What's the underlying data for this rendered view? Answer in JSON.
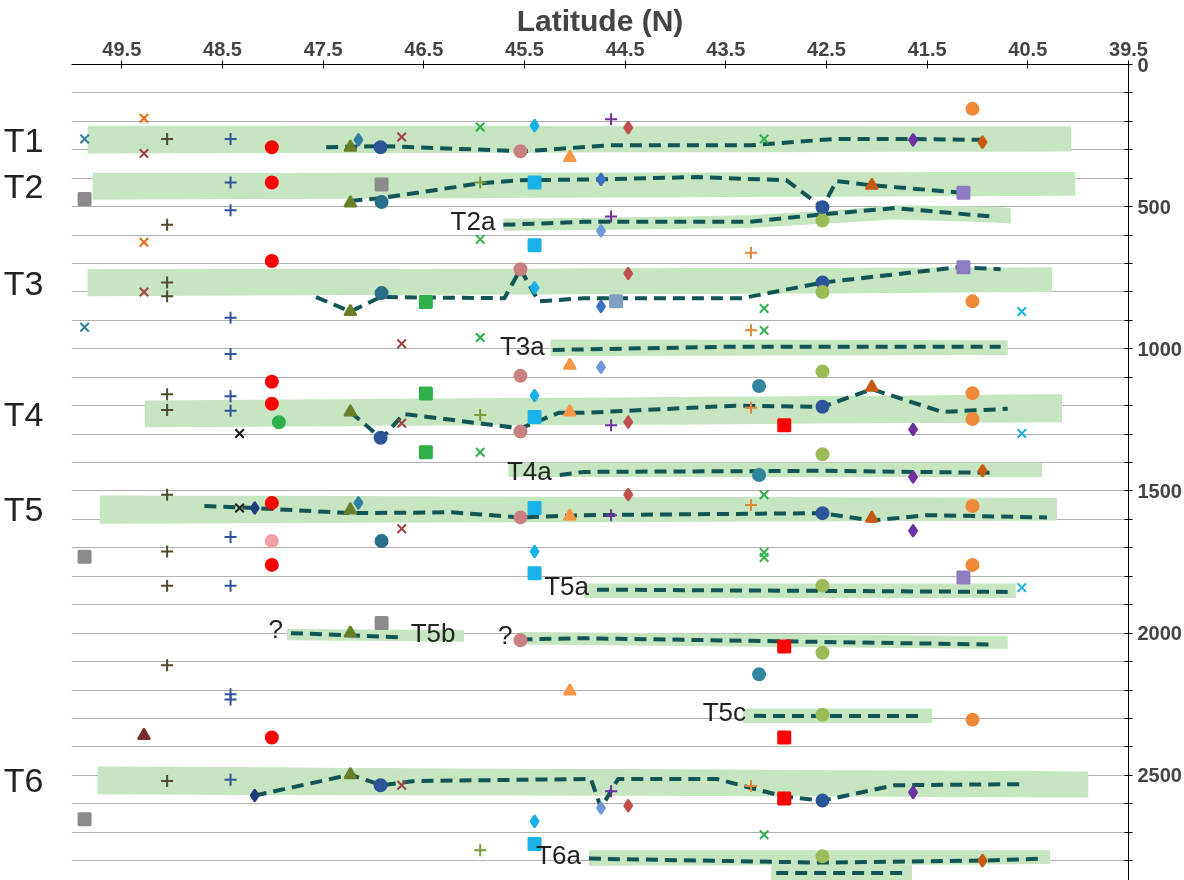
{
  "chart_data": {
    "type": "scatter",
    "xlabel": "Latitude (N)",
    "xlim": [
      50,
      39.5
    ],
    "ylim": [
      2870,
      0
    ],
    "xticks": [
      49.5,
      48.5,
      47.5,
      46.5,
      45.5,
      44.5,
      43.5,
      42.5,
      41.5,
      40.5,
      39.5
    ],
    "yticks": [
      0,
      {
        "value": 100,
        "label": null
      },
      {
        "value": 200,
        "label": null
      },
      {
        "value": 300,
        "label": null
      },
      {
        "value": 400,
        "label": null
      },
      500,
      {
        "value": 600,
        "label": null
      },
      {
        "value": 700,
        "label": null
      },
      {
        "value": 800,
        "label": null
      },
      {
        "value": 900,
        "label": null
      },
      1000,
      {
        "value": 1100,
        "label": null
      },
      {
        "value": 1200,
        "label": null
      },
      {
        "value": 1300,
        "label": null
      },
      {
        "value": 1400,
        "label": null
      },
      1500,
      {
        "value": 1600,
        "label": null
      },
      {
        "value": 1700,
        "label": null
      },
      {
        "value": 1800,
        "label": null
      },
      {
        "value": 1900,
        "label": null
      },
      2000,
      {
        "value": 2100,
        "label": null
      },
      {
        "value": 2200,
        "label": null
      },
      {
        "value": 2300,
        "label": null
      },
      {
        "value": 2400,
        "label": null
      },
      2500,
      {
        "value": 2600,
        "label": null
      },
      {
        "value": 2700,
        "label": null
      },
      {
        "value": 2800,
        "label": null
      }
    ],
    "grid": "y",
    "annotations": [
      {
        "text": "T1",
        "x": 49.84,
        "y": 264
      },
      {
        "text": "T2",
        "x": 49.79,
        "y": 429
      },
      {
        "text": "T3",
        "x": 49.84,
        "y": 767
      },
      {
        "text": "T4",
        "x": 49.27,
        "y": 1229
      },
      {
        "text": "T5",
        "x": 49.72,
        "y": 1565
      },
      {
        "text": "T6",
        "x": 49.74,
        "y": 2518
      },
      {
        "text": "T2a",
        "x": 45.71,
        "y": 564
      },
      {
        "text": "T3a",
        "x": 45.22,
        "y": 1004
      },
      {
        "text": "T4a",
        "x": 45.15,
        "y": 1444
      },
      {
        "text": "T5a",
        "x": 44.78,
        "y": 1847
      },
      {
        "text": "T5b",
        "x": 46.71,
        "y": 2015
      },
      {
        "text": "T5c",
        "x": 43.22,
        "y": 2291
      },
      {
        "text": "T6a",
        "x": 44.86,
        "y": 2793
      },
      {
        "text": "?",
        "x": 47.82,
        "y": 2000
      },
      {
        "text": "?",
        "x": 45.54,
        "y": 2022
      }
    ],
    "series": [
      {
        "type": "line",
        "color": "#135454",
        "line_style": "dashed",
        "x": [
          49.84,
          47.47,
          46.93,
          45.5,
          44.64,
          43.25,
          42.42,
          41.64,
          40.95,
          40.07
        ],
        "values": [
          null,
          291,
          287,
          305,
          284,
          284,
          262,
          262,
          265,
          null
        ],
        "lower": [
          215,
          216,
          216,
          216,
          217,
          217,
          217,
          218,
          218,
          218
        ],
        "upper": [
          313,
          311,
          311,
          310,
          309,
          309,
          308,
          307,
          307,
          306
        ]
      },
      {
        "type": "line",
        "color": "#135454",
        "line_style": "dashed",
        "x": [
          49.79,
          47.23,
          46.93,
          45.94,
          45.54,
          44.74,
          43.8,
          42.9,
          42.54,
          42.4,
          42.05,
          41.14,
          40.03
        ],
        "values": [
          null,
          480,
          470,
          418,
          407,
          404,
          396,
          407,
          502,
          410,
          425,
          451,
          null
        ],
        "lower": [
          382,
          381,
          381,
          381,
          380,
          380,
          380,
          379,
          379,
          379,
          379,
          378,
          378
        ],
        "upper": [
          476,
          472,
          472,
          470,
          469,
          468,
          467,
          465,
          465,
          465,
          464,
          463,
          462
        ]
      },
      {
        "type": "line",
        "color": "#135454",
        "line_style": "dashed",
        "x": [
          45.71,
          44.91,
          43.26,
          42.54,
          41.82,
          40.85,
          40.67
        ],
        "values": [
          564,
          553,
          553,
          527,
          505,
          535,
          null
        ],
        "lower": [
          542,
          540,
          530,
          515,
          495,
          500,
          505
        ],
        "upper": [
          585,
          582,
          575,
          560,
          545,
          555,
          560
        ]
      },
      {
        "type": "line",
        "color": "#135454",
        "line_style": "dashed",
        "x": [
          49.84,
          47.57,
          47.23,
          46.93,
          45.7,
          45.54,
          45.36,
          44.91,
          43.34,
          42.54,
          41.19,
          40.77,
          40.26
        ],
        "values": [
          null,
          818,
          869,
          818,
          822,
          720,
          833,
          822,
          822,
          767,
          713,
          720,
          null
        ],
        "lower": [
          720,
          719,
          719,
          719,
          718,
          718,
          718,
          717,
          716,
          716,
          714,
          714,
          713
        ],
        "upper": [
          815,
          812,
          811,
          811,
          809,
          809,
          809,
          808,
          806,
          805,
          802,
          801,
          800
        ]
      },
      {
        "type": "line",
        "color": "#135454",
        "line_style": "dashed",
        "x": [
          45.24,
          45.22,
          43.5,
          40.77,
          40.7
        ],
        "values": [
          null,
          1004,
          993,
          993,
          null
        ],
        "lower": [
          967,
          967,
          968,
          970,
          970
        ],
        "upper": [
          1025,
          1025,
          1024,
          1022,
          1022
        ]
      },
      {
        "type": "line",
        "color": "#135454",
        "line_style": "dashed",
        "x": [
          49.27,
          47.23,
          46.92,
          46.7,
          45.54,
          45.16,
          44.91,
          43.4,
          42.54,
          42.05,
          41.35,
          40.7,
          40.16
        ],
        "values": [
          null,
          1222,
          1316,
          1229,
          1280,
          1225,
          1225,
          1200,
          1204,
          1142,
          1222,
          1211,
          null
        ],
        "lower": [
          1182,
          1177,
          1176,
          1176,
          1173,
          1172,
          1172,
          1168,
          1166,
          1165,
          1163,
          1161,
          1160
        ],
        "upper": [
          1276,
          1272,
          1271,
          1271,
          1269,
          1268,
          1268,
          1265,
          1263,
          1262,
          1261,
          1259,
          1258
        ]
      },
      {
        "type": "line",
        "color": "#135454",
        "line_style": "dashed",
        "x": [
          45.66,
          45.15,
          44.91,
          42.57,
          40.85,
          40.36
        ],
        "values": [
          null,
          1444,
          1433,
          1429,
          1436,
          null
        ],
        "lower": [
          1400,
          1400,
          1400,
          1400,
          1400,
          1400
        ],
        "upper": [
          1451,
          1451,
          1451,
          1451,
          1451,
          1451
        ]
      },
      {
        "type": "line",
        "color": "#135454",
        "line_style": "dashed",
        "x": [
          49.72,
          48.68,
          48.18,
          47.23,
          46.22,
          45.54,
          44.91,
          42.54,
          42.05,
          41.5,
          40.31,
          40.21
        ],
        "values": [
          null,
          1553,
          1560,
          1578,
          1575,
          1593,
          1585,
          1578,
          1604,
          1585,
          1593,
          null
        ],
        "lower": [
          1516,
          1517,
          1517,
          1518,
          1519,
          1520,
          1520,
          1522,
          1523,
          1523,
          1524,
          1524
        ],
        "upper": [
          1615,
          1614,
          1613,
          1612,
          1611,
          1610,
          1610,
          1607,
          1606,
          1606,
          1604,
          1604
        ]
      },
      {
        "type": "line",
        "color": "#135454",
        "line_style": "dashed",
        "x": [
          44.91,
          44.78,
          40.7,
          40.62
        ],
        "values": [
          null,
          1847,
          1855,
          null
        ],
        "lower": [
          1825,
          1825,
          1825,
          1825
        ],
        "upper": [
          1876,
          1876,
          1876,
          1876
        ]
      },
      {
        "type": "line",
        "color": "#135454",
        "line_style": "dashed",
        "x": [
          47.86,
          47.82,
          46.71,
          46.1
        ],
        "values": [
          null,
          2000,
          2015,
          null
        ],
        "lower": [
          1985,
          1985,
          1988,
          1990
        ],
        "upper": [
          2025,
          2025,
          2028,
          2030
        ]
      },
      {
        "type": "line",
        "color": "#135454",
        "line_style": "dashed",
        "x": [
          45.54,
          44.91,
          40.87,
          40.7
        ],
        "values": [
          2022,
          2018,
          2040,
          null
        ],
        "lower": [
          1996,
          1998,
          2010,
          2010
        ],
        "upper": [
          2040,
          2042,
          2055,
          2055
        ]
      },
      {
        "type": "line",
        "color": "#135454",
        "line_style": "dashed",
        "x": [
          43.33,
          43.22,
          41.55,
          41.45
        ],
        "values": [
          null,
          2291,
          2291,
          null
        ],
        "lower": [
          2265,
          2265,
          2265,
          2265
        ],
        "upper": [
          2316,
          2316,
          2316,
          2316
        ]
      },
      {
        "type": "line",
        "color": "#135454",
        "line_style": "dashed",
        "x": [
          49.74,
          48.18,
          47.23,
          46.92,
          46.59,
          44.84,
          44.74,
          44.57,
          43.59,
          42.92,
          42.54,
          41.82,
          40.55,
          39.9
        ],
        "values": [
          null,
          2571,
          2498,
          2535,
          2520,
          2513,
          2615,
          2513,
          2513,
          2575,
          2589,
          2535,
          2531,
          null
        ],
        "lower": [
          2469,
          2472,
          2474,
          2474,
          2475,
          2478,
          2478,
          2478,
          2480,
          2481,
          2482,
          2483,
          2485,
          2487
        ],
        "upper": [
          2567,
          2569,
          2570,
          2570,
          2570,
          2572,
          2572,
          2572,
          2573,
          2574,
          2574,
          2575,
          2577,
          2578
        ]
      },
      {
        "type": "line",
        "color": "#135454",
        "line_style": "dashed",
        "x": [
          44.86,
          42.57,
          40.95,
          40.35,
          40.28
        ],
        "values": [
          2793,
          2807,
          2800,
          2793,
          null
        ],
        "lower": [
          2764,
          2764,
          2764,
          2764,
          2764
        ],
        "upper": [
          2818,
          2816,
          2814,
          2812,
          2812
        ]
      },
      {
        "type": "line",
        "color": "#135454",
        "line_style": "dashed",
        "x": [
          43.05,
          43.0,
          41.7,
          41.65
        ],
        "values": [
          null,
          2844,
          2844,
          null
        ],
        "lower": [
          2815,
          2815,
          2815,
          2815
        ],
        "upper": [
          2870,
          2870,
          2870,
          2870
        ]
      },
      {
        "marker": "x",
        "color": "#2e7f9a",
        "x": [
          49.87,
          49.87
        ],
        "values": [
          262,
          924
        ]
      },
      {
        "marker": "square",
        "color": "#8c8c8c",
        "x": [
          49.87,
          49.87,
          49.87,
          46.92,
          46.92
        ],
        "values": [
          473,
          1731,
          2655,
          422,
          1964
        ]
      },
      {
        "marker": "x",
        "color": "#a0413f",
        "x": [
          49.28,
          49.28,
          46.72,
          46.72,
          46.72,
          46.72,
          46.72
        ],
        "values": [
          313,
          800,
          255,
          982,
          1262,
          1633,
          2535
        ]
      },
      {
        "marker": "x",
        "color": "#e46c0a",
        "x": [
          49.28,
          49.28
        ],
        "values": [
          189,
          625
        ]
      },
      {
        "marker": "triangle",
        "color": "#7b2c2c",
        "x": [
          49.28
        ],
        "values": [
          2360
        ]
      },
      {
        "marker": "cross",
        "color": "#4f4a2c",
        "x": [
          49.05,
          49.05,
          49.05,
          49.05,
          49.05,
          49.05,
          49.05,
          49.05,
          49.05,
          49.05,
          49.05
        ],
        "values": [
          262,
          564,
          767,
          815,
          1160,
          1215,
          1513,
          1713,
          1833,
          2113,
          2520
        ]
      },
      {
        "marker": "cross",
        "color": "#2f5597",
        "x": [
          48.42,
          48.42,
          48.42,
          48.42,
          48.42,
          48.42,
          48.42,
          48.42,
          48.42,
          48.42,
          48.42,
          48.42
        ],
        "values": [
          262,
          415,
          513,
          891,
          1018,
          1167,
          1218,
          1662,
          1833,
          2215,
          2233,
          2516
        ]
      },
      {
        "marker": "circle",
        "color": "#ff0000",
        "x": [
          48.01,
          48.01,
          48.01,
          48.01,
          48.01,
          48.01,
          48.01,
          48.01
        ],
        "values": [
          291,
          415,
          691,
          1116,
          1193,
          1542,
          1760,
          2367
        ]
      },
      {
        "marker": "circle",
        "color": "#f4a0a8",
        "x": [
          48.01
        ],
        "values": [
          1676
        ]
      },
      {
        "marker": "x",
        "color": "#1a1a1a",
        "x": [
          48.33,
          48.33
        ],
        "values": [
          1298,
          1560
        ]
      },
      {
        "marker": "circle",
        "color": "#2fb04a",
        "x": [
          47.94
        ],
        "values": [
          1258
        ]
      },
      {
        "marker": "diamond",
        "color": "#1f3d7a",
        "x": [
          48.18,
          48.18
        ],
        "values": [
          1560,
          2571
        ]
      },
      {
        "marker": "triangle",
        "color": "#6b7f2a",
        "x": [
          47.23,
          47.23,
          47.23,
          47.23,
          47.23,
          47.23,
          47.23
        ],
        "values": [
          291,
          487,
          869,
          1222,
          1567,
          2000,
          2498
        ]
      },
      {
        "marker": "circle",
        "color": "#2e5597",
        "x": [
          46.93,
          46.93,
          46.93
        ],
        "values": [
          291,
          1313,
          2535
        ]
      },
      {
        "marker": "circle",
        "color": "#2a6f8a",
        "x": [
          46.92,
          46.92,
          46.92
        ],
        "values": [
          484,
          804,
          1676
        ]
      },
      {
        "marker": "diamond",
        "color": "#2e7fa0",
        "x": [
          47.15,
          47.15
        ],
        "values": [
          265,
          1542
        ]
      },
      {
        "marker": "square",
        "color": "#2fb04a",
        "x": [
          46.48,
          46.48,
          46.48
        ],
        "values": [
          835,
          1157,
          1364
        ]
      },
      {
        "marker": "x",
        "color": "#2fb04a",
        "x": [
          45.94,
          45.94,
          45.94,
          45.94
        ],
        "values": [
          220,
          615,
          960,
          1364
        ]
      },
      {
        "marker": "cross",
        "color": "#7a9a3a",
        "x": [
          45.94,
          45.94,
          45.94
        ],
        "values": [
          415,
          1233,
          2764
        ]
      },
      {
        "marker": "circle",
        "color": "#c98080",
        "x": [
          45.54,
          45.54,
          45.54,
          45.54,
          45.54,
          45.54
        ],
        "values": [
          305,
          720,
          1095,
          1291,
          1593,
          2025
        ]
      },
      {
        "marker": "diamond",
        "color": "#1ab0e8",
        "x": [
          45.4,
          45.4,
          45.4,
          45.4,
          45.4
        ],
        "values": [
          215,
          785,
          1164,
          1713,
          2662
        ]
      },
      {
        "marker": "square",
        "color": "#1ab0e8",
        "x": [
          45.4,
          45.4,
          45.4,
          45.4,
          45.4,
          45.4
        ],
        "values": [
          415,
          636,
          1240,
          1560,
          1789,
          2742
        ]
      },
      {
        "marker": "triangle",
        "color": "#f79646",
        "x": [
          45.05,
          45.05,
          45.05,
          45.05,
          45.05
        ],
        "values": [
          327,
          1058,
          1222,
          1589,
          2204
        ]
      },
      {
        "marker": "diamond",
        "color": "#3a6fc4",
        "x": [
          44.74,
          44.74
        ],
        "values": [
          404,
          851
        ]
      },
      {
        "marker": "diamond",
        "color": "#6f9ad6",
        "x": [
          44.74,
          44.74,
          44.74
        ],
        "values": [
          585,
          1065,
          2615
        ]
      },
      {
        "marker": "cross",
        "color": "#7030a0",
        "x": [
          44.64,
          44.64,
          44.64,
          44.64,
          44.64
        ],
        "values": [
          193,
          535,
          1269,
          1585,
          2556
        ]
      },
      {
        "marker": "diamond",
        "color": "#c0504d",
        "x": [
          44.47,
          44.47,
          44.47,
          44.47,
          44.47
        ],
        "values": [
          222,
          735,
          1258,
          1513,
          2607
        ]
      },
      {
        "marker": "square",
        "color": "#7f9fc0",
        "x": [
          44.59
        ],
        "values": [
          833
        ]
      },
      {
        "marker": "cross",
        "color": "#e0883a",
        "x": [
          43.25,
          43.25,
          43.25,
          43.25,
          43.25
        ],
        "values": [
          662,
          935,
          1207,
          1549,
          2538
        ]
      },
      {
        "marker": "x",
        "color": "#2fb04a",
        "x": [
          43.12,
          43.12,
          43.12,
          43.12,
          43.12,
          43.12,
          43.12
        ],
        "values": [
          262,
          858,
          935,
          1513,
          1716,
          1734,
          2709
        ]
      },
      {
        "marker": "circle",
        "color": "#31859c",
        "x": [
          43.17,
          43.17,
          43.17
        ],
        "values": [
          1131,
          1444,
          2145
        ]
      },
      {
        "marker": "square",
        "color": "#ff0000",
        "x": [
          42.92,
          42.92,
          42.92,
          42.92
        ],
        "values": [
          1269,
          2047,
          2367,
          2582
        ]
      },
      {
        "marker": "circle",
        "color": "#2e5597",
        "x": [
          42.54,
          42.54,
          42.54,
          42.54,
          42.54
        ],
        "values": [
          502,
          767,
          1204,
          1578,
          2589
        ]
      },
      {
        "marker": "circle",
        "color": "#9bbb59",
        "x": [
          42.54,
          42.54,
          42.54,
          42.54,
          42.54,
          42.54,
          42.54,
          42.54
        ],
        "values": [
          549,
          800,
          1080,
          1371,
          1833,
          2069,
          2287,
          2785
        ]
      },
      {
        "marker": "triangle",
        "color": "#c55a11",
        "x": [
          42.05,
          42.05,
          42.05
        ],
        "values": [
          425,
          1135,
          1596
        ]
      },
      {
        "marker": "diamond",
        "color": "#7030a0",
        "x": [
          41.64,
          41.64,
          41.64,
          41.64,
          41.64
        ],
        "values": [
          265,
          1284,
          1451,
          1640,
          2560
        ]
      },
      {
        "marker": "square",
        "color": "#8e7cc3",
        "x": [
          41.14,
          41.14,
          41.14
        ],
        "values": [
          451,
          713,
          1804
        ]
      },
      {
        "marker": "circle",
        "color": "#f0883a",
        "x": [
          41.05,
          41.05,
          41.05,
          41.05,
          41.05,
          41.05,
          41.05
        ],
        "values": [
          156,
          833,
          1156,
          1247,
          1553,
          1760,
          2305
        ]
      },
      {
        "marker": "diamond",
        "color": "#c55a11",
        "x": [
          40.95,
          40.95,
          40.95
        ],
        "values": [
          273,
          1429,
          2800
        ]
      },
      {
        "marker": "x",
        "color": "#1ab0e8",
        "x": [
          40.56,
          40.56,
          40.56
        ],
        "values": [
          869,
          1298,
          1840
        ]
      }
    ]
  }
}
